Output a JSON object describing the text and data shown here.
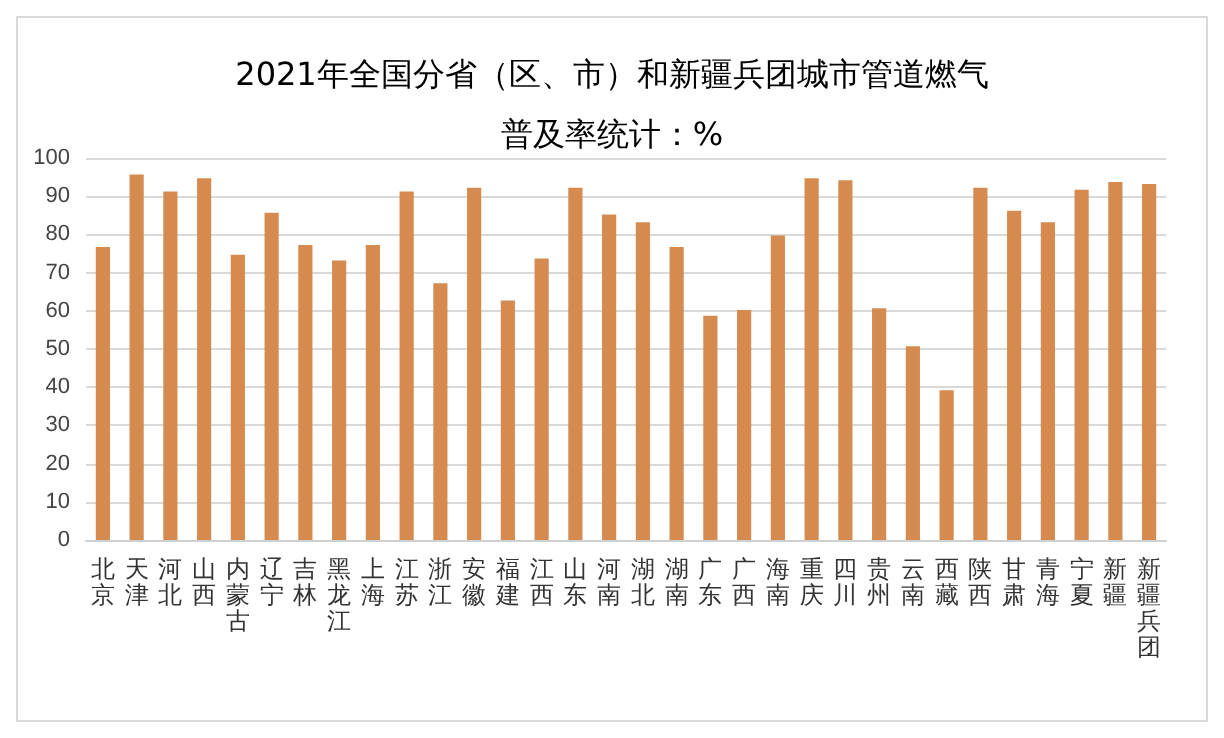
{
  "chart_data": {
    "type": "bar",
    "title": "2021年全国分省（区、市）和新疆兵团城市管道燃气普及率统计：%",
    "categories": [
      "北京",
      "天津",
      "河北",
      "山西",
      "内蒙古",
      "辽宁",
      "吉林",
      "黑龙江",
      "上海",
      "江苏",
      "浙江",
      "安徽",
      "福建",
      "江西",
      "山东",
      "河南",
      "湖北",
      "湖南",
      "广东",
      "广西",
      "海南",
      "重庆",
      "四川",
      "贵州",
      "云南",
      "西藏",
      "陕西",
      "甘肃",
      "青海",
      "宁夏",
      "新疆",
      "新疆兵团"
    ],
    "series": [
      {
        "color": "#d58b4f",
        "values": [
          76.7,
          95.7,
          91.2,
          94.7,
          74.7,
          85.7,
          77.2,
          73.2,
          77.2,
          91.2,
          67.2,
          92.2,
          62.7,
          73.7,
          92.2,
          85.2,
          83.2,
          76.7,
          58.7,
          60.2,
          79.7,
          94.7,
          94.2,
          60.7,
          50.7,
          39.2,
          92.2,
          86.2,
          83.2,
          91.7,
          93.7,
          93.2
        ]
      }
    ],
    "ylim": [
      0,
      100
    ],
    "yticks": [
      0,
      10,
      20,
      30,
      40,
      50,
      60,
      70,
      80,
      90,
      100
    ],
    "grid": "y"
  }
}
